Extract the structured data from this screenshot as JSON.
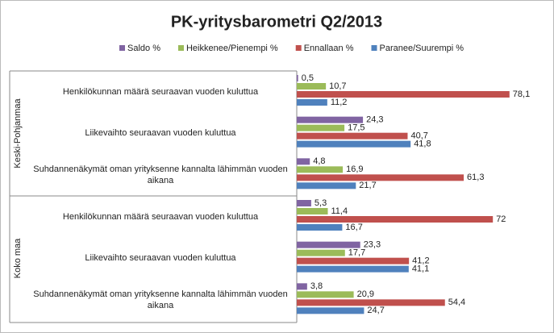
{
  "chart_data": {
    "type": "hbar",
    "title": "PK-yritysbarometri Q2/2013",
    "groups": [
      "Keski-Pohjanmaa",
      "Koko maa"
    ],
    "categories": [
      "Henkilökunnan määrä seuraavan vuoden kuluttua",
      "Liikevaihto seuraavan vuoden kuluttua",
      "Suhdannenäkymät oman yrityksenne kannalta lähimmän vuoden aikana",
      "Henkilökunnan määrä seuraavan vuoden kuluttua",
      "Liikevaihto seuraavan vuoden kuluttua",
      "Suhdannenäkymät oman yrityksenne kannalta lähimmän vuoden aikana"
    ],
    "category_groups": [
      0,
      0,
      0,
      1,
      1,
      1
    ],
    "xlim": [
      0,
      90
    ],
    "series": [
      {
        "name": "Saldo %",
        "color": "#8064a2",
        "values": [
          0.5,
          24.3,
          4.8,
          5.3,
          23.3,
          3.8
        ],
        "value_labels": [
          "0,5",
          "24,3",
          "4,8",
          "5,3",
          "23,3",
          "3,8"
        ]
      },
      {
        "name": "Heikkenee/Pienempi %",
        "color": "#9bbb59",
        "values": [
          10.7,
          17.5,
          16.9,
          11.4,
          17.7,
          20.9
        ],
        "value_labels": [
          "10,7",
          "17,5",
          "16,9",
          "11,4",
          "17,7",
          "20,9"
        ]
      },
      {
        "name": "Ennallaan %",
        "color": "#c0504d",
        "values": [
          78.1,
          40.7,
          61.3,
          72,
          41.2,
          54.4
        ],
        "value_labels": [
          "78,1",
          "40,7",
          "61,3",
          "72",
          "41,2",
          "54,4"
        ]
      },
      {
        "name": "Paranee/Suurempi %",
        "color": "#4f81bd",
        "values": [
          11.2,
          41.8,
          21.7,
          16.7,
          41.1,
          24.7
        ],
        "value_labels": [
          "11,2",
          "41,8",
          "21,7",
          "16,7",
          "41,1",
          "24,7"
        ]
      }
    ]
  }
}
